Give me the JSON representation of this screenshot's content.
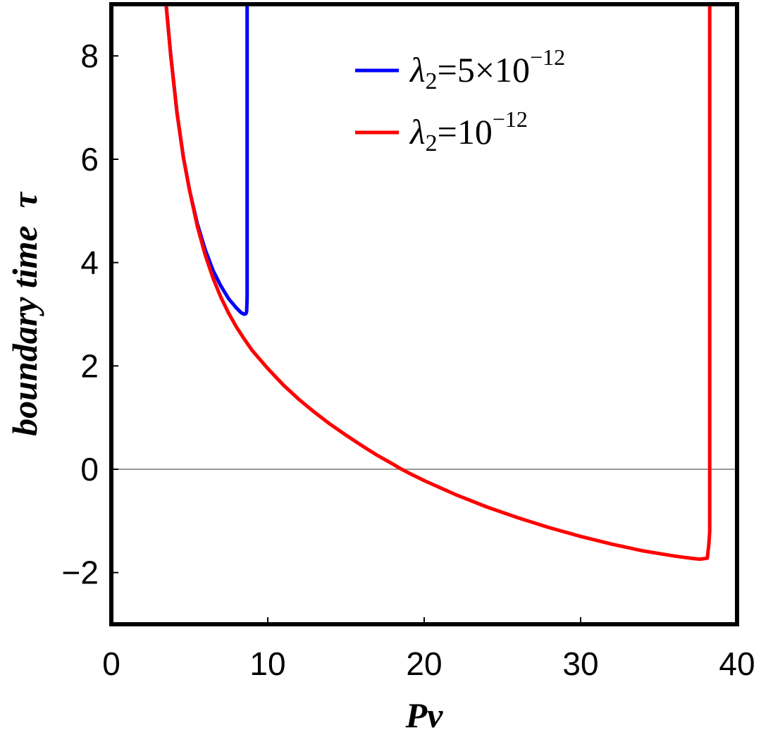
{
  "chart_data": {
    "type": "line",
    "xlabel": "Pv",
    "ylabel": "boundary time  τ",
    "xlim": [
      0,
      40
    ],
    "ylim": [
      -3,
      9
    ],
    "xticks": [
      "0",
      "10",
      "20",
      "30",
      "40"
    ],
    "yticks": [
      "−2",
      "0",
      "2",
      "4",
      "6",
      "8"
    ],
    "grid": false,
    "legend_position": "top-right",
    "series": [
      {
        "name": "λ2=5×10−12",
        "legend": {
          "symbol": "λ",
          "sub": "2",
          "base": "=5×10",
          "exp": "−12"
        },
        "color": "#0000ff",
        "x": [
          3.5,
          3.8,
          4.2,
          4.6,
          5.0,
          5.5,
          6.0,
          6.5,
          7.0,
          7.5,
          8.0,
          8.3,
          8.5,
          8.6,
          8.65,
          8.68,
          8.68
        ],
        "y": [
          9.0,
          8.0,
          6.9,
          6.05,
          5.4,
          4.75,
          4.25,
          3.85,
          3.55,
          3.3,
          3.12,
          3.03,
          3.0,
          3.01,
          3.05,
          3.3,
          9.0
        ]
      },
      {
        "name": "λ2=10−12",
        "legend": {
          "symbol": "λ",
          "sub": "2",
          "base": "=10",
          "exp": "−12"
        },
        "color": "#ff0000",
        "x": [
          3.5,
          3.8,
          4.2,
          4.6,
          5.0,
          5.5,
          6.0,
          6.5,
          7.0,
          7.5,
          8.0,
          8.5,
          9.0,
          10.0,
          11.0,
          12.0,
          13.0,
          14.0,
          15.0,
          16.0,
          17.0,
          18.0,
          18.5,
          19.0,
          20.0,
          22.0,
          24.0,
          26.0,
          28.0,
          30.0,
          32.0,
          34.0,
          36.0,
          37.0,
          37.6,
          37.9,
          38.1,
          38.2,
          38.25,
          38.25
        ],
        "y": [
          9.0,
          8.0,
          6.9,
          6.05,
          5.4,
          4.7,
          4.15,
          3.7,
          3.33,
          3.02,
          2.75,
          2.52,
          2.3,
          1.95,
          1.63,
          1.35,
          1.1,
          0.87,
          0.66,
          0.46,
          0.27,
          0.1,
          0.01,
          -0.07,
          -0.22,
          -0.49,
          -0.73,
          -0.94,
          -1.13,
          -1.3,
          -1.45,
          -1.58,
          -1.68,
          -1.72,
          -1.74,
          -1.73,
          -1.72,
          -1.45,
          -1.2,
          9.0
        ]
      }
    ]
  }
}
